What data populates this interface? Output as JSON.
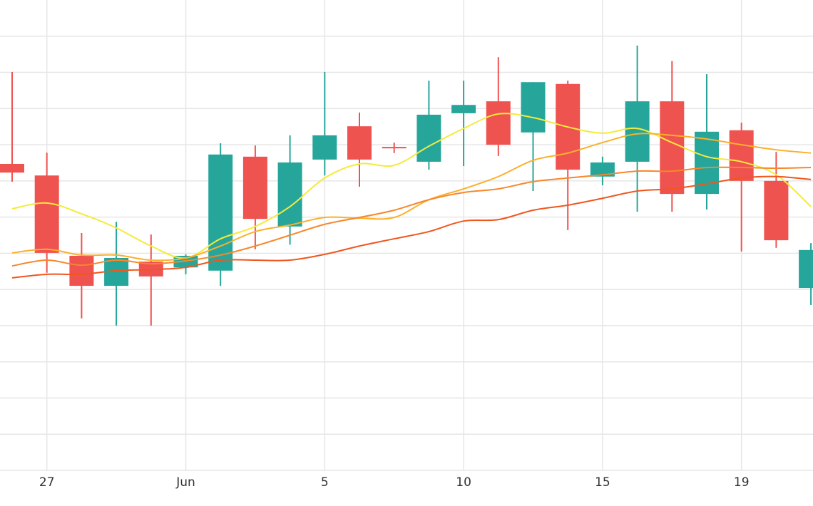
{
  "chart_data": {
    "type": "candlestick",
    "categories": [
      null,
      "27",
      null,
      null,
      null,
      "Jun",
      null,
      null,
      null,
      "5",
      null,
      null,
      null,
      "10",
      null,
      null,
      null,
      "15",
      null,
      null,
      null,
      "19",
      null,
      null
    ],
    "open": [
      8.47,
      8.15,
      5.93,
      5.1,
      5.77,
      5.61,
      5.52,
      8.67,
      6.74,
      8.59,
      9.51,
      8.94,
      8.53,
      9.87,
      10.2,
      9.34,
      10.68,
      8.12,
      8.53,
      10.2,
      7.64,
      9.4,
      8.0,
      5.04
    ],
    "high": [
      11.01,
      8.78,
      6.56,
      6.87,
      6.52,
      5.97,
      9.04,
      8.98,
      9.26,
      11.01,
      9.89,
      9.06,
      10.77,
      10.77,
      11.42,
      10.73,
      10.77,
      8.67,
      11.74,
      11.31,
      10.95,
      9.61,
      8.8,
      6.28
    ],
    "low": [
      7.98,
      5.46,
      4.2,
      4.0,
      4.0,
      5.42,
      5.1,
      6.11,
      6.24,
      8.15,
      7.84,
      8.77,
      8.31,
      8.41,
      8.69,
      7.72,
      6.64,
      7.88,
      7.15,
      7.15,
      7.21,
      6.05,
      6.15,
      4.57
    ],
    "close": [
      8.23,
      6.01,
      5.1,
      5.87,
      5.36,
      5.93,
      8.73,
      6.95,
      8.51,
      9.26,
      8.59,
      8.9,
      9.83,
      10.1,
      9.0,
      10.73,
      8.31,
      8.51,
      10.2,
      7.64,
      9.36,
      8.0,
      6.36,
      6.09
    ],
    "up_color": "#26a69a",
    "down_color": "#ef5350",
    "lines": [
      {
        "color": "#f5ea3b",
        "values": [
          7.23,
          7.39,
          7.09,
          6.7,
          6.2,
          5.87,
          6.4,
          6.74,
          7.29,
          8.08,
          8.47,
          8.43,
          8.96,
          9.45,
          9.85,
          9.75,
          9.49,
          9.32,
          9.45,
          9.06,
          8.67,
          8.53,
          8.17,
          7.29
        ]
      },
      {
        "color": "#fbb02a",
        "values": [
          6.01,
          6.11,
          5.95,
          5.95,
          5.81,
          5.87,
          6.2,
          6.6,
          6.78,
          6.99,
          6.97,
          6.99,
          7.48,
          7.78,
          8.12,
          8.57,
          8.77,
          9.06,
          9.3,
          9.26,
          9.16,
          9.0,
          8.86,
          8.77
        ]
      },
      {
        "color": "#f7872b",
        "values": [
          5.65,
          5.81,
          5.67,
          5.81,
          5.71,
          5.79,
          5.95,
          6.2,
          6.5,
          6.8,
          6.99,
          7.19,
          7.48,
          7.68,
          7.78,
          7.98,
          8.08,
          8.17,
          8.27,
          8.27,
          8.37,
          8.37,
          8.35,
          8.37
        ]
      },
      {
        "color": "#f0561d",
        "values": [
          5.32,
          5.42,
          5.42,
          5.52,
          5.55,
          5.61,
          5.81,
          5.81,
          5.81,
          5.97,
          6.2,
          6.4,
          6.6,
          6.89,
          6.93,
          7.19,
          7.33,
          7.52,
          7.72,
          7.78,
          7.92,
          8.08,
          8.12,
          8.04
        ]
      }
    ],
    "ylim": [
      0,
      13
    ],
    "yticks": [
      0,
      1,
      2,
      3,
      4,
      5,
      6,
      7,
      8,
      9,
      10,
      11,
      12
    ],
    "grid": true
  }
}
